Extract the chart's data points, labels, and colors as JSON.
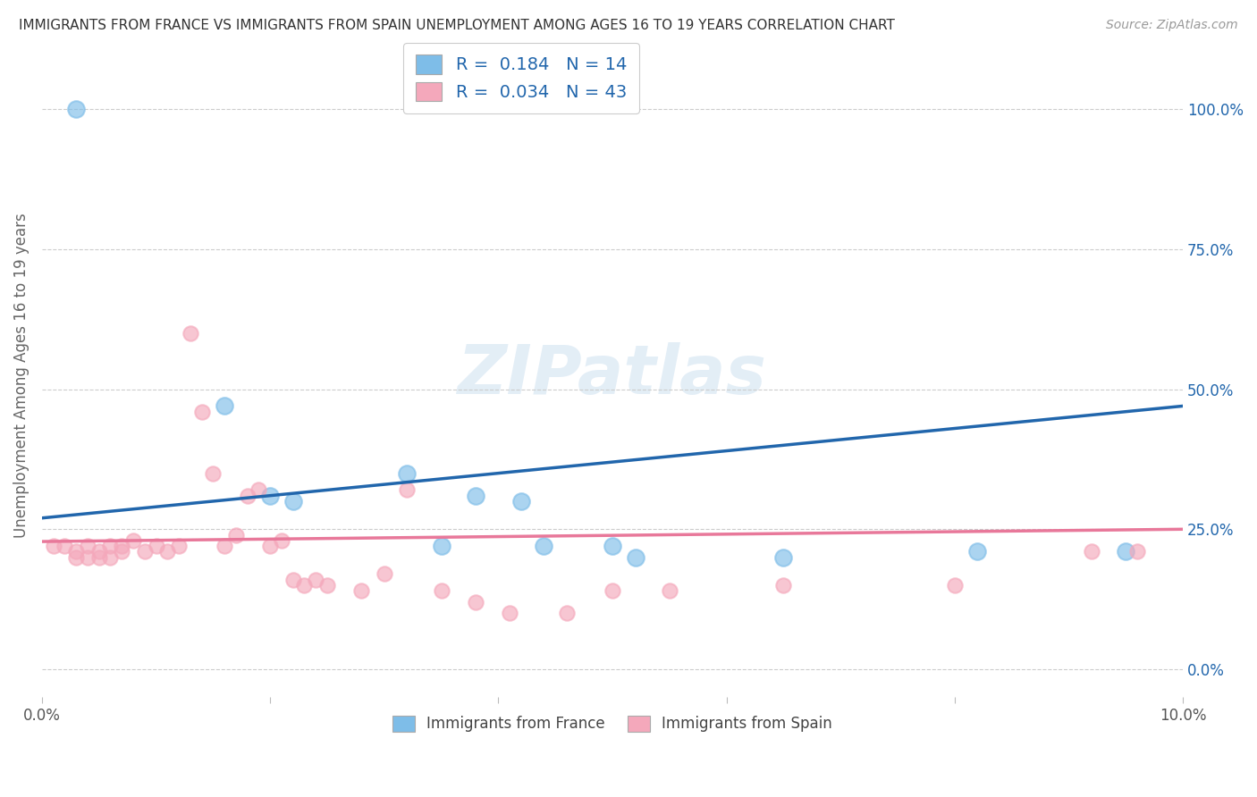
{
  "title": "IMMIGRANTS FROM FRANCE VS IMMIGRANTS FROM SPAIN UNEMPLOYMENT AMONG AGES 16 TO 19 YEARS CORRELATION CHART",
  "source": "Source: ZipAtlas.com",
  "ylabel": "Unemployment Among Ages 16 to 19 years",
  "xlim": [
    0.0,
    0.1
  ],
  "ylim": [
    -0.05,
    1.1
  ],
  "xticks": [
    0.0,
    0.02,
    0.04,
    0.06,
    0.08,
    0.1
  ],
  "xtick_labels": [
    "0.0%",
    "",
    "",
    "",
    "",
    "10.0%"
  ],
  "ytick_vals_right": [
    1.0,
    0.75,
    0.5,
    0.25,
    0.0
  ],
  "ytick_labels_right": [
    "100.0%",
    "75.0%",
    "50.0%",
    "25.0%",
    "0.0%"
  ],
  "legend_france_r": "0.184",
  "legend_france_n": "14",
  "legend_spain_r": "0.034",
  "legend_spain_n": "43",
  "france_color": "#7ebde8",
  "spain_color": "#f4a8bb",
  "france_line_color": "#2166ac",
  "spain_line_color": "#e8789a",
  "france_scatter_x": [
    0.003,
    0.016,
    0.02,
    0.022,
    0.032,
    0.035,
    0.038,
    0.042,
    0.044,
    0.05,
    0.052,
    0.065,
    0.082,
    0.095
  ],
  "france_scatter_y": [
    1.0,
    0.47,
    0.31,
    0.3,
    0.35,
    0.22,
    0.31,
    0.3,
    0.22,
    0.22,
    0.2,
    0.2,
    0.21,
    0.21
  ],
  "spain_scatter_x": [
    0.001,
    0.002,
    0.003,
    0.003,
    0.004,
    0.004,
    0.005,
    0.005,
    0.006,
    0.006,
    0.007,
    0.007,
    0.008,
    0.009,
    0.01,
    0.011,
    0.012,
    0.013,
    0.014,
    0.015,
    0.016,
    0.017,
    0.018,
    0.019,
    0.02,
    0.021,
    0.022,
    0.023,
    0.024,
    0.025,
    0.028,
    0.03,
    0.032,
    0.035,
    0.038,
    0.041,
    0.046,
    0.05,
    0.055,
    0.065,
    0.08,
    0.092,
    0.096
  ],
  "spain_scatter_y": [
    0.22,
    0.22,
    0.21,
    0.2,
    0.22,
    0.2,
    0.21,
    0.2,
    0.22,
    0.2,
    0.21,
    0.22,
    0.23,
    0.21,
    0.22,
    0.21,
    0.22,
    0.6,
    0.46,
    0.35,
    0.22,
    0.24,
    0.31,
    0.32,
    0.22,
    0.23,
    0.16,
    0.15,
    0.16,
    0.15,
    0.14,
    0.17,
    0.32,
    0.14,
    0.12,
    0.1,
    0.1,
    0.14,
    0.14,
    0.15,
    0.15,
    0.21,
    0.21
  ],
  "france_line_x": [
    0.0,
    0.1
  ],
  "france_line_y": [
    0.27,
    0.47
  ],
  "spain_line_x": [
    0.0,
    0.1
  ],
  "spain_line_y": [
    0.228,
    0.25
  ],
  "watermark": "ZIPatlas",
  "background_color": "#ffffff",
  "grid_color": "#cccccc"
}
